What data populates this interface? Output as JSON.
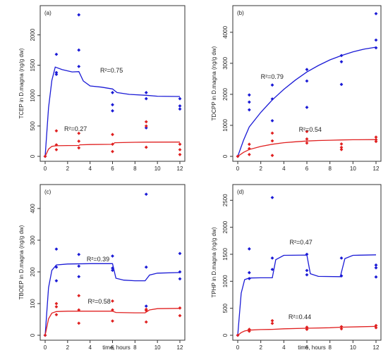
{
  "figure": {
    "xlabel": "time, hours"
  },
  "colors": {
    "blue": "#1a1ad6",
    "red": "#e02020",
    "axis": "#333333"
  },
  "chart_data": [
    {
      "type": "scatter",
      "label": "(a)",
      "ylabel": "TCEP in D.magna (ng/g dw)",
      "xlim": [
        0,
        12
      ],
      "xticks": [
        0,
        2,
        4,
        6,
        8,
        10,
        12
      ],
      "ylim": [
        0,
        2400
      ],
      "yticks": [
        0,
        500,
        1000,
        1500,
        2000
      ],
      "series": [
        {
          "color": "blue",
          "points": [
            [
              0,
              0
            ],
            [
              1,
              1380
            ],
            [
              1,
              1350
            ],
            [
              1,
              1680
            ],
            [
              3,
              2330
            ],
            [
              3,
              1750
            ],
            [
              3,
              1480
            ],
            [
              6,
              1050
            ],
            [
              6,
              850
            ],
            [
              6,
              750
            ],
            [
              9,
              1050
            ],
            [
              9,
              950
            ],
            [
              9,
              470
            ],
            [
              12,
              950
            ],
            [
              12,
              830
            ],
            [
              12,
              780
            ]
          ],
          "fit": [
            [
              0,
              0
            ],
            [
              0.3,
              800
            ],
            [
              0.6,
              1250
            ],
            [
              0.9,
              1470
            ],
            [
              1.5,
              1430
            ],
            [
              2.4,
              1390
            ],
            [
              3,
              1395
            ],
            [
              3.4,
              1240
            ],
            [
              4,
              1160
            ],
            [
              5,
              1140
            ],
            [
              6,
              1110
            ],
            [
              6.4,
              1050
            ],
            [
              7.5,
              1020
            ],
            [
              9,
              1005
            ],
            [
              10,
              990
            ],
            [
              12,
              985
            ]
          ],
          "r2": "R²=0.75",
          "r2_pos": [
            4.9,
            1380
          ]
        },
        {
          "color": "red",
          "points": [
            [
              0,
              0
            ],
            [
              1,
              420
            ],
            [
              1,
              190
            ],
            [
              1,
              110
            ],
            [
              3,
              380
            ],
            [
              3,
              250
            ],
            [
              3,
              140
            ],
            [
              6,
              360
            ],
            [
              6,
              200
            ],
            [
              6,
              80
            ],
            [
              9,
              570
            ],
            [
              9,
              500
            ],
            [
              9,
              150
            ],
            [
              12,
              200
            ],
            [
              12,
              110
            ],
            [
              12,
              30
            ]
          ],
          "fit": [
            [
              0,
              0
            ],
            [
              0.3,
              120
            ],
            [
              0.6,
              165
            ],
            [
              1,
              175
            ],
            [
              2,
              178
            ],
            [
              3,
              180
            ],
            [
              3.1,
              190
            ],
            [
              4,
              195
            ],
            [
              6,
              198
            ],
            [
              6.2,
              225
            ],
            [
              8,
              232
            ],
            [
              9,
              234
            ],
            [
              12,
              235
            ]
          ],
          "r2": "R²=0.27",
          "r2_pos": [
            1.7,
            420
          ]
        }
      ]
    },
    {
      "type": "scatter",
      "label": "(b)",
      "ylabel": "TDCPP in D.magna (ng/g dw)",
      "xlim": [
        0,
        12
      ],
      "xticks": [
        0,
        2,
        4,
        6,
        8,
        10,
        12
      ],
      "ylim": [
        0,
        4700
      ],
      "yticks": [
        0,
        1000,
        2000,
        3000,
        4000
      ],
      "series": [
        {
          "color": "blue",
          "points": [
            [
              0,
              0
            ],
            [
              1,
              1980
            ],
            [
              1,
              1750
            ],
            [
              1,
              1500
            ],
            [
              3,
              2300
            ],
            [
              3,
              1850
            ],
            [
              3,
              1150
            ],
            [
              6,
              2800
            ],
            [
              6,
              2430
            ],
            [
              6,
              1580
            ],
            [
              9,
              3250
            ],
            [
              9,
              3050
            ],
            [
              9,
              2320
            ],
            [
              12,
              4600
            ],
            [
              12,
              3750
            ],
            [
              12,
              3500
            ]
          ],
          "fit": [
            [
              0,
              0
            ],
            [
              0.5,
              520
            ],
            [
              1,
              950
            ],
            [
              2,
              1420
            ],
            [
              3,
              1820
            ],
            [
              4,
              2160
            ],
            [
              5,
              2460
            ],
            [
              6,
              2720
            ],
            [
              7,
              2930
            ],
            [
              8,
              3110
            ],
            [
              9,
              3250
            ],
            [
              10,
              3370
            ],
            [
              11,
              3460
            ],
            [
              12,
              3520
            ]
          ],
          "r2": "R²=0.79",
          "r2_pos": [
            2.0,
            2500
          ]
        },
        {
          "color": "red",
          "points": [
            [
              0,
              0
            ],
            [
              1,
              390
            ],
            [
              1,
              250
            ],
            [
              1,
              60
            ],
            [
              3,
              750
            ],
            [
              3,
              500
            ],
            [
              3,
              30
            ],
            [
              6,
              800
            ],
            [
              6,
              560
            ],
            [
              6,
              430
            ],
            [
              9,
              400
            ],
            [
              9,
              290
            ],
            [
              9,
              220
            ],
            [
              12,
              620
            ],
            [
              12,
              540
            ],
            [
              12,
              480
            ]
          ],
          "fit": [
            [
              0,
              0
            ],
            [
              0.5,
              130
            ],
            [
              1,
              220
            ],
            [
              2,
              320
            ],
            [
              3,
              390
            ],
            [
              4,
              440
            ],
            [
              5,
              470
            ],
            [
              6,
              495
            ],
            [
              7,
              510
            ],
            [
              8,
              520
            ],
            [
              9,
              530
            ],
            [
              10,
              535
            ],
            [
              12,
              540
            ]
          ],
          "r2": "R²=0.54",
          "r2_pos": [
            5.3,
            800
          ]
        }
      ]
    },
    {
      "type": "scatter",
      "label": "(c)",
      "ylabel": "TBOEP in D.magna (ng/g dw)",
      "xlim": [
        0,
        12
      ],
      "xticks": [
        0,
        2,
        4,
        6,
        8,
        10,
        12
      ],
      "ylim": [
        0,
        460
      ],
      "yticks": [
        0,
        100,
        200,
        300,
        400
      ],
      "series": [
        {
          "color": "blue",
          "points": [
            [
              0,
              0
            ],
            [
              1,
              272
            ],
            [
              1,
              215
            ],
            [
              1,
              172
            ],
            [
              3,
              255
            ],
            [
              3,
              218
            ],
            [
              3,
              185
            ],
            [
              6,
              250
            ],
            [
              6,
              212
            ],
            [
              6,
              205
            ],
            [
              9,
              445
            ],
            [
              9,
              215
            ],
            [
              9,
              92
            ],
            [
              12,
              258
            ],
            [
              12,
              200
            ],
            [
              12,
              178
            ]
          ],
          "fit": [
            [
              0,
              0
            ],
            [
              0.3,
              150
            ],
            [
              0.6,
              205
            ],
            [
              1,
              222
            ],
            [
              2,
              225
            ],
            [
              4,
              226
            ],
            [
              6,
              226
            ],
            [
              6.3,
              180
            ],
            [
              7,
              174
            ],
            [
              8,
              172
            ],
            [
              8.9,
              172
            ],
            [
              9.3,
              190
            ],
            [
              10,
              196
            ],
            [
              12,
              198
            ]
          ],
          "r2": "R²=0.39",
          "r2_pos": [
            3.7,
            233
          ]
        },
        {
          "color": "red",
          "points": [
            [
              0,
              0
            ],
            [
              1,
              100
            ],
            [
              1,
              90
            ],
            [
              1,
              65
            ],
            [
              3,
              125
            ],
            [
              3,
              80
            ],
            [
              3,
              38
            ],
            [
              6,
              108
            ],
            [
              6,
              80
            ],
            [
              6,
              45
            ],
            [
              9,
              82
            ],
            [
              9,
              78
            ],
            [
              9,
              42
            ],
            [
              12,
              86
            ],
            [
              12,
              62
            ]
          ],
          "fit": [
            [
              0,
              0
            ],
            [
              0.3,
              52
            ],
            [
              0.6,
              70
            ],
            [
              1,
              75
            ],
            [
              2,
              76
            ],
            [
              6,
              76
            ],
            [
              6.3,
              72
            ],
            [
              8,
              71
            ],
            [
              8.9,
              71
            ],
            [
              9.3,
              80
            ],
            [
              10,
              84
            ],
            [
              12,
              85
            ]
          ],
          "r2": "R²=0.58",
          "r2_pos": [
            3.8,
            100
          ]
        }
      ]
    },
    {
      "type": "scatter",
      "label": "(d)",
      "ylabel": "TPHP in D.magna (ng/g dw)",
      "xlim": [
        0,
        12
      ],
      "xticks": [
        0,
        2,
        4,
        6,
        8,
        10,
        12
      ],
      "ylim": [
        0,
        2700
      ],
      "yticks": [
        0,
        500,
        1000,
        1500,
        2000,
        2500
      ],
      "series": [
        {
          "color": "blue",
          "points": [
            [
              0,
              0
            ],
            [
              1,
              1600
            ],
            [
              1,
              1160
            ],
            [
              1,
              1050
            ],
            [
              3,
              2550
            ],
            [
              3,
              1430
            ],
            [
              3,
              1220
            ],
            [
              6,
              1500
            ],
            [
              6,
              1200
            ],
            [
              6,
              1120
            ],
            [
              9,
              1430
            ],
            [
              9,
              1100
            ],
            [
              12,
              1300
            ],
            [
              12,
              1250
            ],
            [
              12,
              1080
            ]
          ],
          "fit": [
            [
              0,
              0
            ],
            [
              0.3,
              780
            ],
            [
              0.6,
              1030
            ],
            [
              1,
              1060
            ],
            [
              2,
              1065
            ],
            [
              3,
              1065
            ],
            [
              3.3,
              1400
            ],
            [
              4,
              1480
            ],
            [
              6,
              1485
            ],
            [
              6.3,
              1140
            ],
            [
              7,
              1090
            ],
            [
              8.9,
              1085
            ],
            [
              9.3,
              1420
            ],
            [
              10,
              1480
            ],
            [
              12,
              1490
            ]
          ],
          "r2": "R²=0.47",
          "r2_pos": [
            4.5,
            1680
          ]
        },
        {
          "color": "red",
          "points": [
            [
              0,
              0
            ],
            [
              1,
              110
            ],
            [
              1,
              75
            ],
            [
              3,
              270
            ],
            [
              3,
              220
            ],
            [
              6,
              150
            ],
            [
              6,
              110
            ],
            [
              9,
              160
            ],
            [
              9,
              120
            ],
            [
              12,
              180
            ],
            [
              12,
              140
            ]
          ],
          "fit": [
            [
              0,
              0
            ],
            [
              0.3,
              50
            ],
            [
              0.6,
              80
            ],
            [
              1,
              95
            ],
            [
              2,
              105
            ],
            [
              3,
              110
            ],
            [
              4,
              120
            ],
            [
              6,
              130
            ],
            [
              8,
              140
            ],
            [
              9,
              150
            ],
            [
              12,
              165
            ]
          ],
          "r2": "R²=0.44",
          "r2_pos": [
            4.4,
            300
          ]
        }
      ]
    }
  ]
}
